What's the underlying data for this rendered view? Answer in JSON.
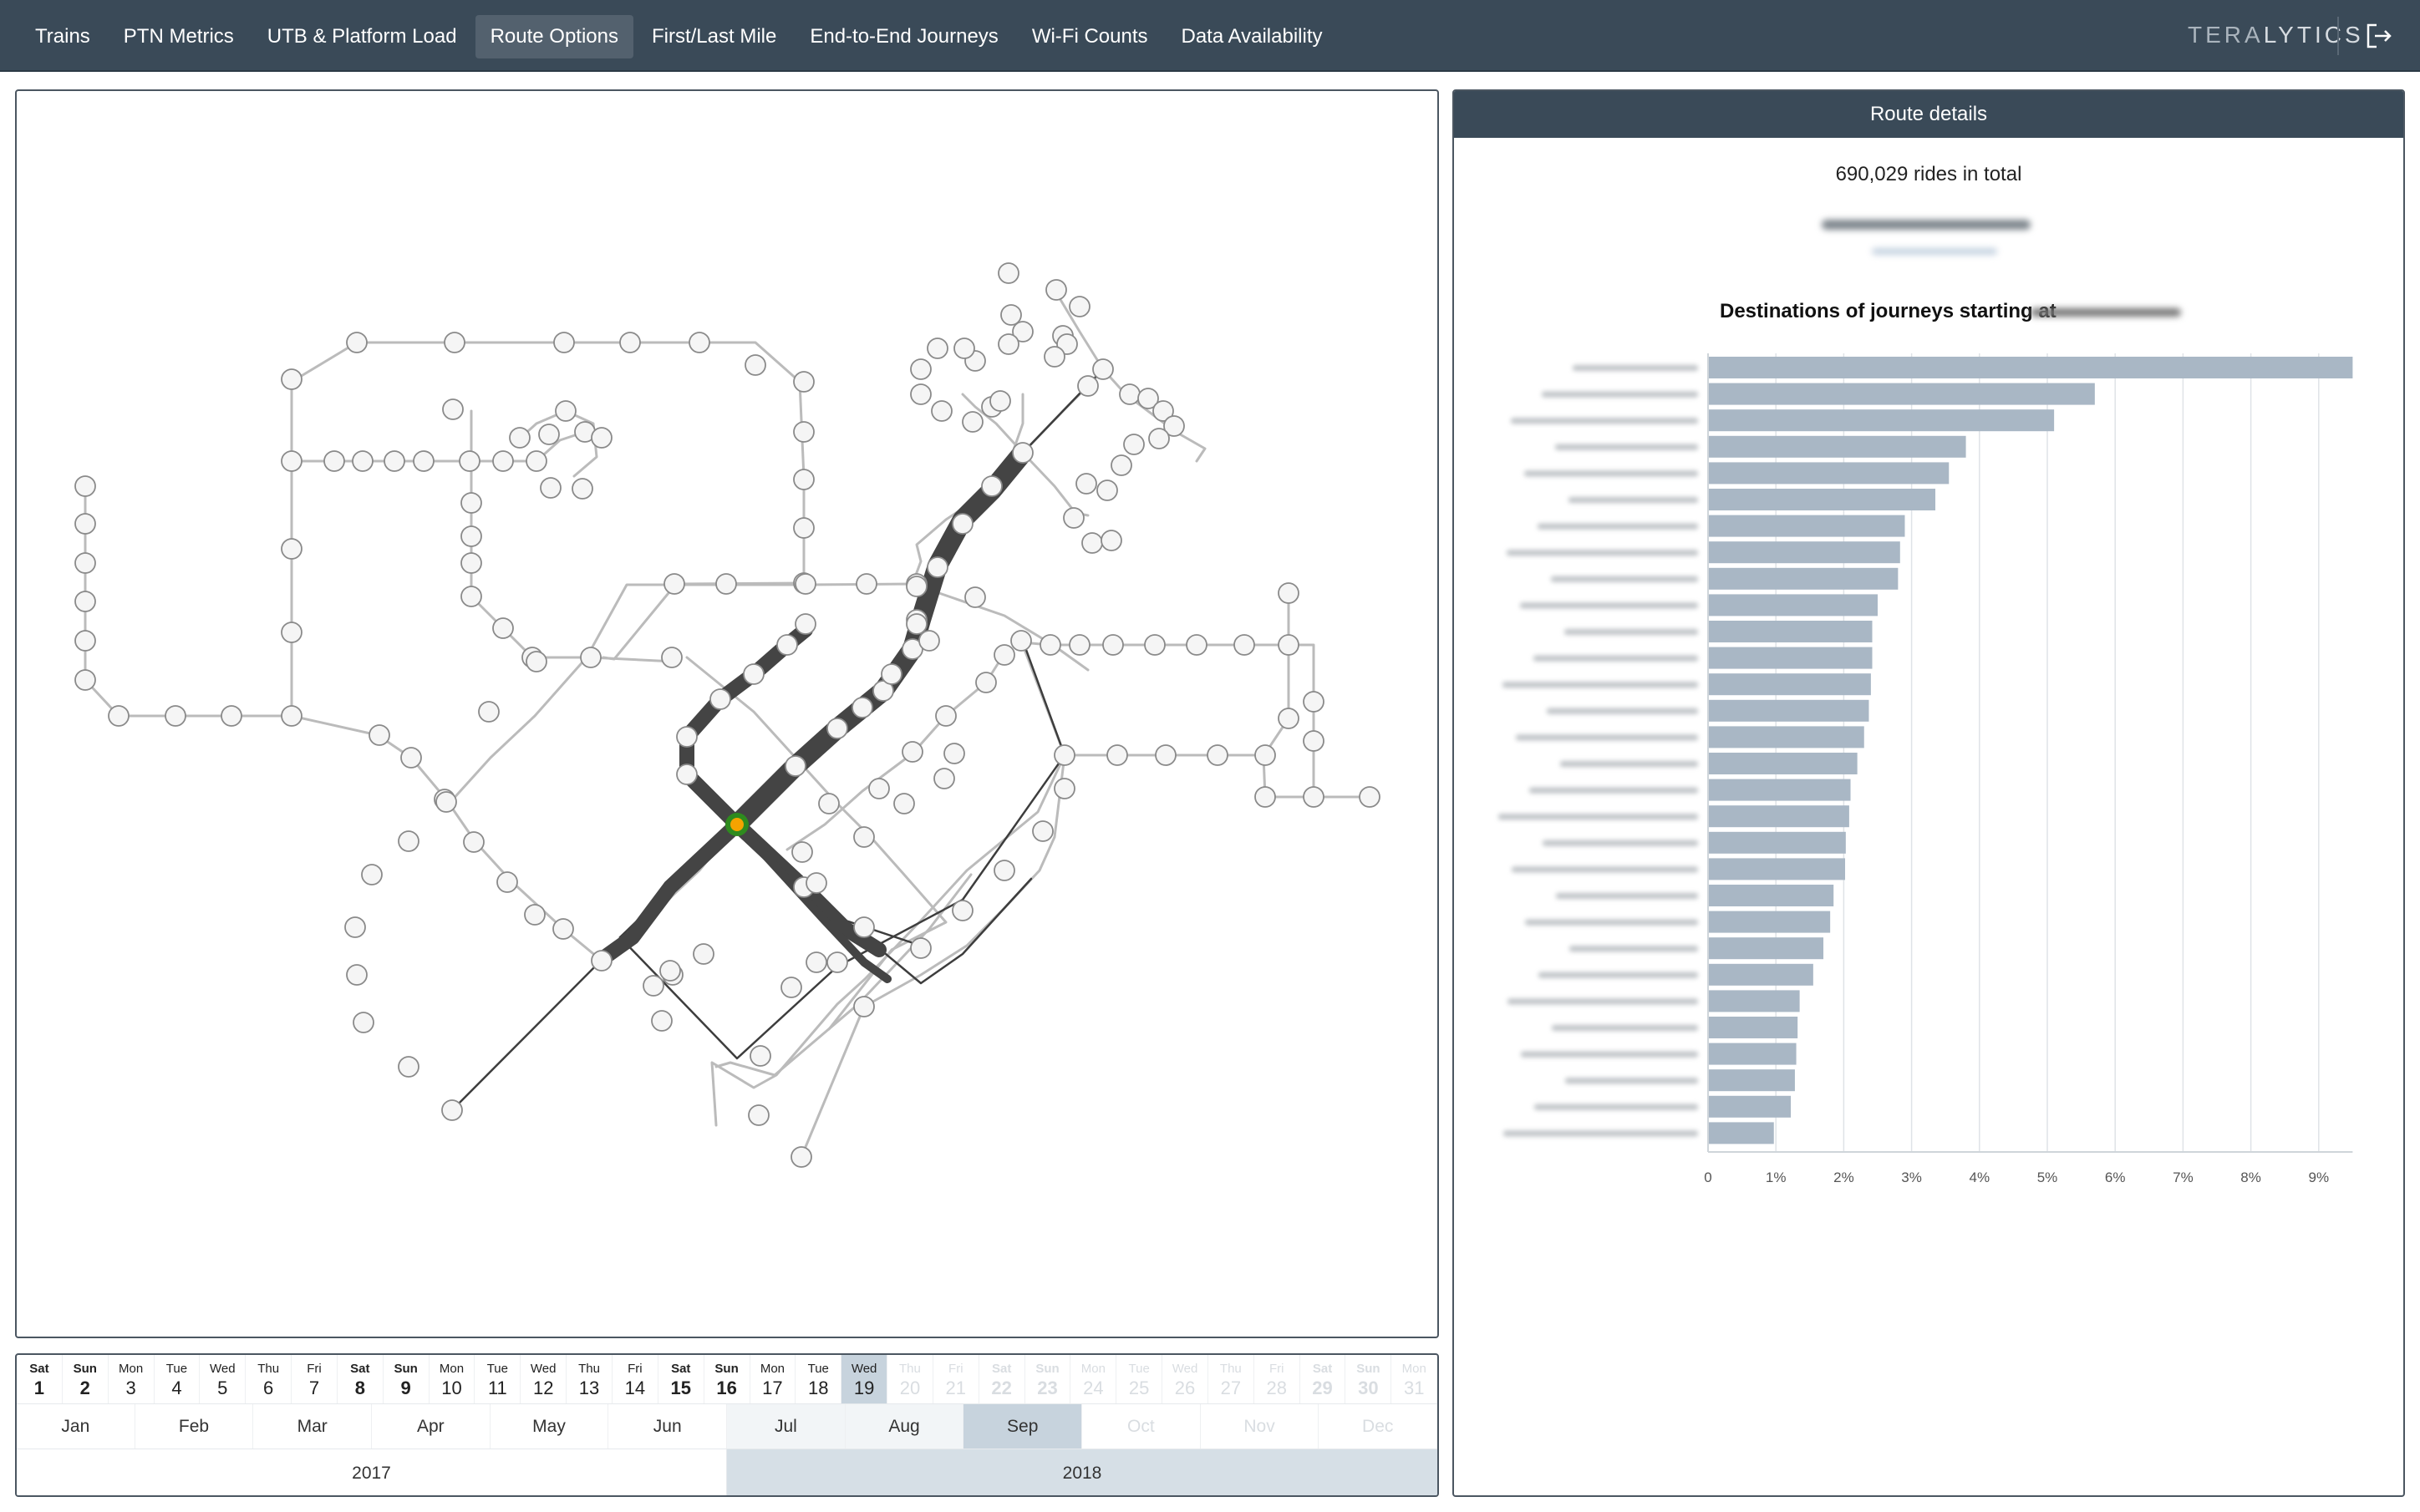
{
  "nav": {
    "items": [
      "Trains",
      "PTN Metrics",
      "UTB & Platform Load",
      "Route Options",
      "First/Last Mile",
      "End-to-End Journeys",
      "Wi-Fi Counts",
      "Data Availability"
    ],
    "active": "Route Options",
    "brand_a": "TERA",
    "brand_b": "LYTICS"
  },
  "colors": {
    "topbar": "#3a4a58",
    "bar": "#a9b7c5",
    "selected": "#c7d3dd",
    "station_fill": "#f5f5f5",
    "origin_outer": "#2e8b1e",
    "origin_inner": "#f5a300"
  },
  "details": {
    "title": "Route details",
    "rides_total": "690,029 rides in total",
    "chart_title": "Destinations of journeys starting at"
  },
  "chart_data": {
    "type": "bar",
    "orientation": "horizontal",
    "categories_note": "destination names are blurred in the original",
    "values": [
      9.5,
      5.7,
      5.1,
      3.8,
      3.55,
      3.35,
      2.9,
      2.83,
      2.8,
      2.5,
      2.42,
      2.42,
      2.4,
      2.37,
      2.3,
      2.2,
      2.1,
      2.08,
      2.03,
      2.02,
      1.85,
      1.8,
      1.7,
      1.55,
      1.35,
      1.32,
      1.3,
      1.28,
      1.22,
      0.97
    ],
    "xticks": [
      "0",
      "1%",
      "2%",
      "3%",
      "4%",
      "5%",
      "6%",
      "7%",
      "8%",
      "9%"
    ],
    "xlim": [
      0,
      9.5
    ],
    "grid": true
  },
  "timeline": {
    "days": [
      {
        "dow": "Sat",
        "num": "1"
      },
      {
        "dow": "Sun",
        "num": "2"
      },
      {
        "dow": "Mon",
        "num": "3"
      },
      {
        "dow": "Tue",
        "num": "4"
      },
      {
        "dow": "Wed",
        "num": "5"
      },
      {
        "dow": "Thu",
        "num": "6"
      },
      {
        "dow": "Fri",
        "num": "7"
      },
      {
        "dow": "Sat",
        "num": "8"
      },
      {
        "dow": "Sun",
        "num": "9"
      },
      {
        "dow": "Mon",
        "num": "10"
      },
      {
        "dow": "Tue",
        "num": "11"
      },
      {
        "dow": "Wed",
        "num": "12"
      },
      {
        "dow": "Thu",
        "num": "13"
      },
      {
        "dow": "Fri",
        "num": "14"
      },
      {
        "dow": "Sat",
        "num": "15"
      },
      {
        "dow": "Sun",
        "num": "16"
      },
      {
        "dow": "Mon",
        "num": "17"
      },
      {
        "dow": "Tue",
        "num": "18"
      },
      {
        "dow": "Wed",
        "num": "19"
      },
      {
        "dow": "Thu",
        "num": "20"
      },
      {
        "dow": "Fri",
        "num": "21"
      },
      {
        "dow": "Sat",
        "num": "22"
      },
      {
        "dow": "Sun",
        "num": "23"
      },
      {
        "dow": "Mon",
        "num": "24"
      },
      {
        "dow": "Tue",
        "num": "25"
      },
      {
        "dow": "Wed",
        "num": "26"
      },
      {
        "dow": "Thu",
        "num": "27"
      },
      {
        "dow": "Fri",
        "num": "28"
      },
      {
        "dow": "Sat",
        "num": "29"
      },
      {
        "dow": "Sun",
        "num": "30"
      },
      {
        "dow": "Mon",
        "num": "31"
      }
    ],
    "selected_day": "19",
    "months_2017": [
      "Jan",
      "Feb",
      "Mar",
      "Apr",
      "May",
      "Jun"
    ],
    "months_2018": [
      "Jul",
      "Aug",
      "Sep",
      "Oct",
      "Nov",
      "Dec"
    ],
    "selected_month": "Sep",
    "years": [
      "2017",
      "2018"
    ],
    "selected_year": "2018"
  }
}
